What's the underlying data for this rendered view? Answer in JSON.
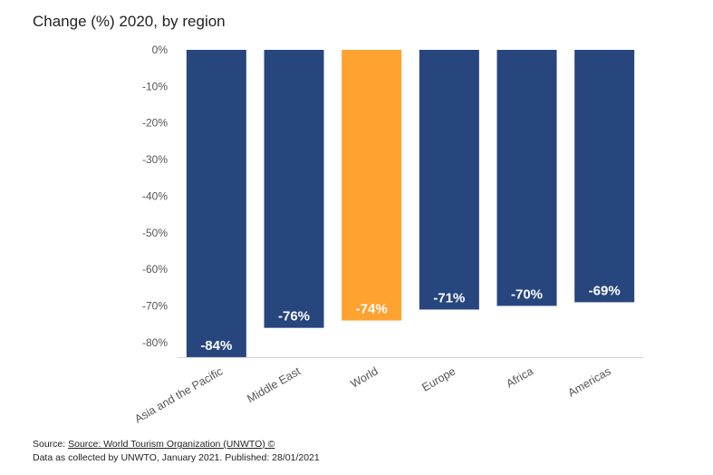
{
  "header": {
    "title": "Change (%) 2020, by region"
  },
  "colors": {
    "bar": "#27467e",
    "highlight": "#ffa22f",
    "axis": "#d6d6d6",
    "tick_text": "#555555"
  },
  "chart_data": {
    "type": "bar",
    "title": "Change (%) 2020, by region",
    "xlabel": "",
    "ylabel": "",
    "categories": [
      "Asia and the Pacific",
      "Middle East",
      "World",
      "Europe",
      "Africa",
      "Americas"
    ],
    "values": [
      -84,
      -76,
      -74,
      -71,
      -70,
      -69
    ],
    "data_labels": [
      "-84%",
      "-76%",
      "-74%",
      "-71%",
      "-70%",
      "-69%"
    ],
    "highlight_category": "World",
    "ylim": [
      -84,
      0
    ],
    "yticks": [
      0,
      -10,
      -20,
      -30,
      -40,
      -50,
      -60,
      -70,
      -80
    ],
    "ytick_labels": [
      "0%",
      "-10%",
      "-20%",
      "-30%",
      "-40%",
      "-50%",
      "-60%",
      "-70%",
      "-80%"
    ],
    "grid": false
  },
  "footer": {
    "source_prefix": "Source: ",
    "source_link": "Source: World Tourism Organization (UNWTO) ©",
    "note": "Data as collected by UNWTO, January 2021. Published: 28/01/2021"
  }
}
